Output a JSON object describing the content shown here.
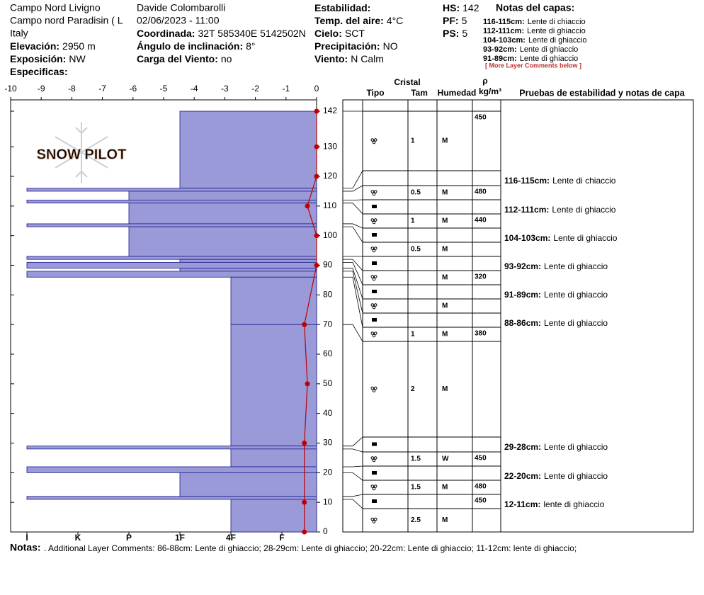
{
  "header": {
    "columns": [
      [
        {
          "text": "Campo Nord Livigno"
        },
        {
          "text": "Campo nord Paradisin ( L"
        },
        {
          "text": "Italy"
        },
        {
          "label": "Elevación:",
          "value": "2950 m"
        },
        {
          "label": "Exposición:",
          "value": "NW"
        },
        {
          "label": "Especificas:"
        }
      ],
      [
        {
          "text": "Davide Colombarolli"
        },
        {
          "text": "02/06/2023 - 11:00"
        },
        {
          "label": "Coordinada:",
          "value": "32T 585340E 5142502N"
        },
        {
          "label": "Ángulo de inclinación:",
          "value": "8°"
        },
        {
          "label": "Carga del Viento:",
          "value": "no"
        }
      ],
      [
        {
          "label": "Estabilidad:"
        },
        {
          "label": "Temp. del aire:",
          "value": "4°C"
        },
        {
          "label": "Cielo:",
          "value": "SCT"
        },
        {
          "label": "Precipitación:",
          "value": "NO"
        },
        {
          "label": "Viento:",
          "value": "N Calm"
        }
      ],
      [
        {
          "label": "HS:",
          "value": "142"
        },
        {
          "label": "PF:",
          "value": "5"
        },
        {
          "label": "PS:",
          "value": "5"
        }
      ]
    ],
    "layer_notes": {
      "title": "Notas del capas:",
      "items": [
        {
          "range": "116-115cm:",
          "text": "Lente di chiaccio"
        },
        {
          "range": "112-111cm:",
          "text": "Lente di ghiaccio"
        },
        {
          "range": "104-103cm:",
          "text": "Lente di ghiaccio"
        },
        {
          "range": "93-92cm:",
          "text": "Lente di ghiaccio"
        },
        {
          "range": "91-89cm:",
          "text": "Lente di ghiaccio"
        }
      ],
      "more": "[ More Layer Comments below ]"
    }
  },
  "logo": "SNOW PILOT",
  "chart_data": {
    "type": "snowprofile",
    "xlim": [
      -10,
      0
    ],
    "xticks": [
      -10,
      -9,
      -8,
      -7,
      -6,
      -5,
      -4,
      -3,
      -2,
      -1,
      0
    ],
    "ylim": [
      0,
      142
    ],
    "yticks": [
      0,
      10,
      20,
      30,
      40,
      50,
      60,
      70,
      80,
      90,
      100,
      110,
      120,
      130,
      142
    ],
    "hardness_levels": [
      "I",
      "K",
      "P",
      "1F",
      "4F",
      "F"
    ],
    "color": "#9a9ad8",
    "temperature_color": "#c00000",
    "layers": [
      {
        "top": 142,
        "bottom": 116,
        "hardness": "1F"
      },
      {
        "top": 116,
        "bottom": 115,
        "hardness": "I"
      },
      {
        "top": 115,
        "bottom": 112,
        "hardness": "P"
      },
      {
        "top": 112,
        "bottom": 111,
        "hardness": "I"
      },
      {
        "top": 111,
        "bottom": 104,
        "hardness": "P"
      },
      {
        "top": 104,
        "bottom": 103,
        "hardness": "I"
      },
      {
        "top": 103,
        "bottom": 93,
        "hardness": "P"
      },
      {
        "top": 93,
        "bottom": 92,
        "hardness": "I"
      },
      {
        "top": 92,
        "bottom": 91,
        "hardness": "1F"
      },
      {
        "top": 91,
        "bottom": 89,
        "hardness": "I"
      },
      {
        "top": 89,
        "bottom": 88,
        "hardness": "1F"
      },
      {
        "top": 88,
        "bottom": 86,
        "hardness": "I"
      },
      {
        "top": 86,
        "bottom": 70,
        "hardness": "4F"
      },
      {
        "top": 70,
        "bottom": 29,
        "hardness": "4F"
      },
      {
        "top": 29,
        "bottom": 28,
        "hardness": "I"
      },
      {
        "top": 28,
        "bottom": 22,
        "hardness": "4F"
      },
      {
        "top": 22,
        "bottom": 20,
        "hardness": "I"
      },
      {
        "top": 20,
        "bottom": 12,
        "hardness": "1F"
      },
      {
        "top": 12,
        "bottom": 11,
        "hardness": "I"
      },
      {
        "top": 11,
        "bottom": 0,
        "hardness": "4F"
      }
    ],
    "temperature": {
      "depth": [
        142,
        130,
        120,
        110,
        100,
        90,
        70,
        50,
        30,
        10,
        0
      ],
      "temp": [
        0,
        0,
        0,
        -0.3,
        0,
        0,
        -0.4,
        -0.3,
        -0.4,
        -0.4,
        -0.4
      ]
    }
  },
  "table": {
    "headers": {
      "crystal": "Cristal",
      "type": "Tipo",
      "size": "Tam",
      "moisture": "Humedad",
      "rho": "ρ",
      "density": "kg/m³",
      "notes": "Pruebas de estabilidad y notas de capa"
    },
    "rows": [
      {
        "grain": "rounded",
        "size": 1,
        "moisture": "M",
        "density": 450
      },
      {
        "comment": {
          "range": "116-115cm:",
          "text": "Lente di chiaccio"
        }
      },
      {
        "grain": "rounded",
        "size": 0.5,
        "moisture": "M",
        "density": 480
      },
      {
        "grain": "ice",
        "comment": {
          "range": "112-111cm:",
          "text": "Lente di ghiaccio"
        }
      },
      {
        "grain": "rounded",
        "size": 1,
        "moisture": "M",
        "density": 440
      },
      {
        "grain": "ice",
        "comment": {
          "range": "104-103cm:",
          "text": "Lente di ghiaccio"
        }
      },
      {
        "grain": "rounded",
        "size": 0.5,
        "moisture": "M"
      },
      {
        "grain": "ice",
        "comment": {
          "range": "93-92cm:",
          "text": "Lente di ghiaccio"
        }
      },
      {
        "grain": "rounded",
        "moisture": "M",
        "density": 320
      },
      {
        "grain": "ice",
        "comment": {
          "range": "91-89cm:",
          "text": "Lente di ghiaccio"
        }
      },
      {
        "grain": "rounded",
        "moisture": "M"
      },
      {
        "grain": "ice",
        "comment": {
          "range": "88-86cm:",
          "text": "Lente di ghiaccio"
        }
      },
      {
        "grain": "rounded",
        "size": 1,
        "moisture": "M",
        "density": 380
      },
      {
        "grain": "rounded",
        "size": 2,
        "moisture": "M"
      },
      {
        "grain": "ice",
        "comment": {
          "range": "29-28cm:",
          "text": "Lente di ghiaccio"
        }
      },
      {
        "grain": "rounded",
        "size": 1.5,
        "moisture": "W",
        "density": 450
      },
      {
        "grain": "ice",
        "comment": {
          "range": "22-20cm:",
          "text": "Lente di ghiaccio"
        }
      },
      {
        "grain": "rounded",
        "size": 1.5,
        "moisture": "M",
        "density": 480
      },
      {
        "grain": "ice",
        "density": 450,
        "comment": {
          "range": "12-11cm:",
          "text": "lente di ghiaccio"
        }
      },
      {
        "grain": "rounded",
        "size": 2.5,
        "moisture": "M"
      }
    ]
  },
  "footer": {
    "label": "Notas:",
    "text": ". Additional Layer Comments: 86-88cm: Lente di ghiaccio; 28-29cm: Lente di ghiaccio; 20-22cm: Lente di ghiaccio; 11-12cm: lente di ghiaccio;"
  }
}
